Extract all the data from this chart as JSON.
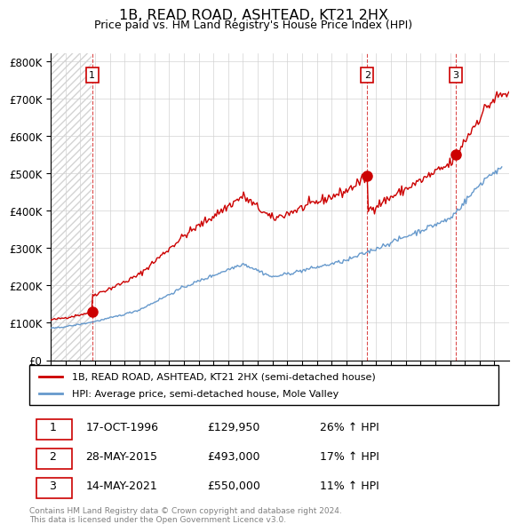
{
  "title": "1B, READ ROAD, ASHTEAD, KT21 2HX",
  "subtitle": "Price paid vs. HM Land Registry's House Price Index (HPI)",
  "ylim": [
    0,
    820000
  ],
  "yticks": [
    0,
    100000,
    200000,
    300000,
    400000,
    500000,
    600000,
    700000,
    800000
  ],
  "ytick_labels": [
    "£0",
    "£100K",
    "£200K",
    "£300K",
    "£400K",
    "£500K",
    "£600K",
    "£700K",
    "£800K"
  ],
  "xlim_start": 1994.0,
  "xlim_end": 2025.0,
  "sales": [
    {
      "date_num": 1996.8,
      "price": 129950,
      "label": "1"
    },
    {
      "date_num": 2015.4,
      "price": 493000,
      "label": "2"
    },
    {
      "date_num": 2021.37,
      "price": 550000,
      "label": "3"
    }
  ],
  "sale_color": "#cc0000",
  "hpi_color": "#6699cc",
  "legend_entries": [
    "1B, READ ROAD, ASHTEAD, KT21 2HX (semi-detached house)",
    "HPI: Average price, semi-detached house, Mole Valley"
  ],
  "table_data": [
    [
      "1",
      "17-OCT-1996",
      "£129,950",
      "26% ↑ HPI"
    ],
    [
      "2",
      "28-MAY-2015",
      "£493,000",
      "17% ↑ HPI"
    ],
    [
      "3",
      "14-MAY-2021",
      "£550,000",
      "11% ↑ HPI"
    ]
  ],
  "footnote": "Contains HM Land Registry data © Crown copyright and database right 2024.\nThis data is licensed under the Open Government Licence v3.0.",
  "background_hatched_end": 1996.75
}
